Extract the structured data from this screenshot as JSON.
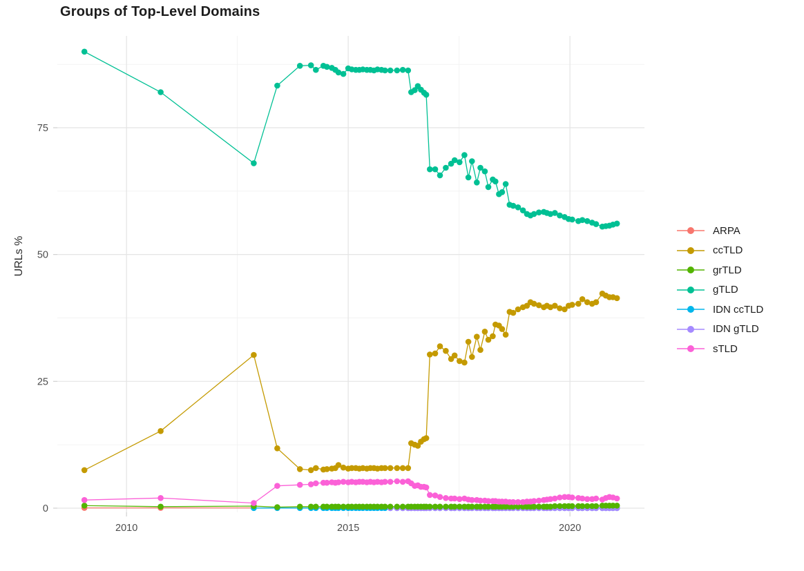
{
  "title": "Groups of Top-Level Domains",
  "axes": {
    "y_label": "URLs %",
    "x_tick_labels": [
      "2010",
      "2015",
      "2020"
    ],
    "y_tick_labels": [
      "0",
      "25",
      "50",
      "75"
    ]
  },
  "legend": {
    "position": "right",
    "items": [
      {
        "label": "ARPA",
        "color": "#F8766D"
      },
      {
        "label": "ccTLD",
        "color": "#C49A00"
      },
      {
        "label": "grTLD",
        "color": "#53B400"
      },
      {
        "label": "gTLD",
        "color": "#00C094"
      },
      {
        "label": "IDN ccTLD",
        "color": "#00B6EB"
      },
      {
        "label": "IDN gTLD",
        "color": "#A58AFF"
      },
      {
        "label": "sTLD",
        "color": "#FB61D7"
      }
    ]
  },
  "chart_data": {
    "type": "line",
    "title": "Groups of Top-Level Domains",
    "xlabel": "",
    "ylabel": "URLs %",
    "xlim": [
      2008.44,
      2021.68
    ],
    "ylim": [
      -0.82,
      93.1
    ],
    "xticks": [
      2010,
      2015,
      2020
    ],
    "yticks": [
      0,
      25,
      50,
      75
    ],
    "x_minor_gridlines": [
      2012.5,
      2017.5
    ],
    "y_minor_gridlines": [
      12.5,
      37.5,
      62.5,
      87.5
    ],
    "grid": true,
    "legend_position": "right",
    "dates": [
      2009.05,
      2010.77,
      2012.87,
      2013.4,
      2013.91,
      2014.16,
      2014.27,
      2014.44,
      2014.52,
      2014.63,
      2014.71,
      2014.78,
      2014.89,
      2015.0,
      2015.08,
      2015.17,
      2015.25,
      2015.33,
      2015.42,
      2015.5,
      2015.58,
      2015.66,
      2015.75,
      2015.83,
      2015.95,
      2016.1,
      2016.23,
      2016.35,
      2016.42,
      2016.5,
      2016.57,
      2016.64,
      2016.71,
      2016.76,
      2016.84,
      2016.96,
      2017.07,
      2017.2,
      2017.32,
      2017.4,
      2017.51,
      2017.62,
      2017.71,
      2017.79,
      2017.9,
      2017.98,
      2018.08,
      2018.16,
      2018.26,
      2018.32,
      2018.4,
      2018.47,
      2018.55,
      2018.64,
      2018.72,
      2018.83,
      2018.94,
      2019.03,
      2019.11,
      2019.19,
      2019.3,
      2019.41,
      2019.48,
      2019.56,
      2019.66,
      2019.77,
      2019.88,
      2019.97,
      2020.05,
      2020.19,
      2020.28,
      2020.39,
      2020.5,
      2020.59,
      2020.73,
      2020.81,
      2020.89,
      2020.97,
      2021.06
    ],
    "series": [
      {
        "name": "ARPA",
        "color": "#F8766D",
        "x_start_index": 0,
        "y_const": 0.05
      },
      {
        "name": "IDN ccTLD",
        "color": "#00B6EB",
        "x_start_index": 2,
        "y_const": 0.02
      },
      {
        "name": "IDN gTLD",
        "color": "#A58AFF",
        "x_start_index": 24,
        "y_const": 0.0
      },
      {
        "name": "ccTLD",
        "color": "#C49A00",
        "x_start_index": 0,
        "y": [
          7.5,
          15.2,
          30.2,
          11.8,
          7.7,
          7.5,
          7.9,
          7.6,
          7.7,
          7.8,
          7.9,
          8.5,
          8.0,
          7.8,
          7.9,
          7.9,
          7.8,
          7.9,
          7.8,
          7.9,
          7.9,
          7.8,
          7.9,
          7.9,
          7.9,
          7.9,
          7.9,
          7.9,
          12.8,
          12.5,
          12.3,
          13.1,
          13.6,
          13.8,
          30.3,
          30.5,
          31.9,
          31.0,
          29.4,
          30.1,
          29.0,
          28.7,
          32.8,
          29.8,
          33.8,
          31.2,
          34.8,
          33.2,
          33.9,
          36.2,
          36.0,
          35.3,
          34.2,
          38.7,
          38.5,
          39.2,
          39.6,
          39.9,
          40.6,
          40.3,
          40.0,
          39.6,
          39.9,
          39.6,
          39.9,
          39.4,
          39.2,
          39.9,
          40.1,
          40.3,
          41.2,
          40.6,
          40.3,
          40.6,
          42.3,
          41.9,
          41.6,
          41.6,
          41.4
        ]
      },
      {
        "name": "grTLD",
        "color": "#53B400",
        "x_start_index": 0,
        "y": [
          0.5,
          0.3,
          0.4,
          0.2,
          0.3,
          0.3,
          0.3,
          0.3,
          0.3,
          0.3,
          0.3,
          0.3,
          0.3,
          0.3,
          0.3,
          0.3,
          0.3,
          0.3,
          0.3,
          0.3,
          0.3,
          0.3,
          0.3,
          0.3,
          0.3,
          0.3,
          0.3,
          0.3,
          0.3,
          0.3,
          0.3,
          0.3,
          0.3,
          0.3,
          0.3,
          0.3,
          0.3,
          0.3,
          0.3,
          0.3,
          0.3,
          0.3,
          0.3,
          0.3,
          0.3,
          0.3,
          0.3,
          0.3,
          0.3,
          0.3,
          0.3,
          0.3,
          0.3,
          0.3,
          0.3,
          0.3,
          0.3,
          0.3,
          0.3,
          0.3,
          0.3,
          0.3,
          0.3,
          0.3,
          0.4,
          0.4,
          0.4,
          0.4,
          0.4,
          0.4,
          0.4,
          0.4,
          0.4,
          0.4,
          0.5,
          0.5,
          0.5,
          0.5,
          0.5
        ]
      },
      {
        "name": "gTLD",
        "color": "#00C094",
        "x_start_index": 0,
        "y": [
          90.0,
          82.0,
          68.0,
          83.3,
          87.2,
          87.3,
          86.4,
          87.2,
          87.0,
          86.8,
          86.4,
          85.9,
          85.6,
          86.7,
          86.5,
          86.4,
          86.4,
          86.5,
          86.4,
          86.4,
          86.3,
          86.5,
          86.4,
          86.3,
          86.3,
          86.3,
          86.4,
          86.3,
          82.0,
          82.4,
          83.2,
          82.5,
          81.9,
          81.5,
          66.8,
          66.8,
          65.6,
          67.1,
          67.9,
          68.6,
          68.2,
          69.6,
          65.2,
          68.4,
          64.2,
          67.1,
          66.4,
          63.3,
          64.8,
          64.4,
          61.9,
          62.3,
          63.9,
          59.8,
          59.6,
          59.3,
          58.7,
          58.0,
          57.7,
          58.0,
          58.3,
          58.4,
          58.2,
          58.0,
          58.2,
          57.7,
          57.4,
          57.0,
          56.9,
          56.6,
          56.8,
          56.6,
          56.3,
          56.0,
          55.5,
          55.6,
          55.7,
          55.9,
          56.1
        ]
      },
      {
        "name": "sTLD",
        "color": "#FB61D7",
        "x_start_index": 0,
        "y": [
          1.6,
          2.0,
          1.0,
          4.4,
          4.6,
          4.7,
          4.9,
          5.0,
          5.0,
          5.1,
          5.0,
          5.1,
          5.2,
          5.1,
          5.2,
          5.1,
          5.2,
          5.2,
          5.1,
          5.2,
          5.1,
          5.2,
          5.1,
          5.2,
          5.2,
          5.3,
          5.2,
          5.3,
          4.9,
          4.4,
          4.5,
          4.2,
          4.2,
          4.1,
          2.6,
          2.5,
          2.2,
          2.0,
          1.9,
          1.9,
          1.8,
          1.9,
          1.7,
          1.6,
          1.6,
          1.5,
          1.5,
          1.4,
          1.4,
          1.4,
          1.3,
          1.3,
          1.3,
          1.2,
          1.2,
          1.2,
          1.2,
          1.3,
          1.3,
          1.4,
          1.5,
          1.6,
          1.7,
          1.8,
          1.9,
          2.1,
          2.2,
          2.2,
          2.1,
          2.0,
          1.9,
          1.8,
          1.8,
          1.9,
          1.7,
          2.0,
          2.2,
          2.1,
          1.9
        ]
      }
    ]
  }
}
